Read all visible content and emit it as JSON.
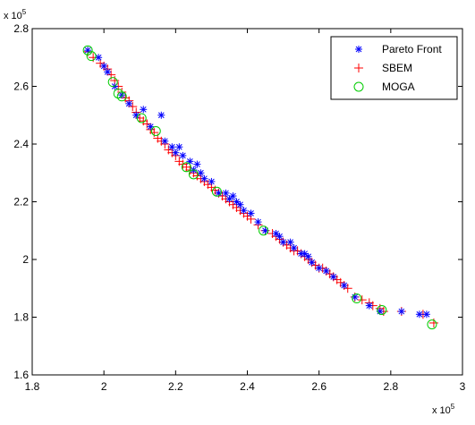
{
  "chart_data": {
    "type": "scatter",
    "title": "",
    "xlabel": "",
    "ylabel": "",
    "x_multiplier_label": "x 10",
    "x_multiplier_exp": "5",
    "y_multiplier_label": "x 10",
    "y_multiplier_exp": "5",
    "xlim": [
      1.8,
      3.0
    ],
    "ylim": [
      1.6,
      2.8
    ],
    "xticks": [
      1.8,
      2.0,
      2.2,
      2.4,
      2.6,
      2.8,
      3.0
    ],
    "yticks": [
      1.6,
      1.8,
      2.0,
      2.2,
      2.4,
      2.6,
      2.8
    ],
    "xtick_labels": [
      "1.8",
      "2",
      "2.2",
      "2.4",
      "2.6",
      "2.8",
      "3"
    ],
    "ytick_labels": [
      "1.6",
      "1.8",
      "2",
      "2.2",
      "2.4",
      "2.6",
      "2.8"
    ],
    "grid": false,
    "legend_position": "top-right",
    "series": [
      {
        "name": "Pareto Front",
        "marker": "star",
        "color": "#0000ff",
        "x": [
          1.955,
          1.985,
          2.0,
          2.01,
          2.03,
          2.05,
          2.07,
          2.09,
          2.11,
          2.13,
          2.16,
          2.17,
          2.19,
          2.2,
          2.21,
          2.22,
          2.24,
          2.25,
          2.26,
          2.27,
          2.28,
          2.3,
          2.32,
          2.34,
          2.35,
          2.36,
          2.37,
          2.38,
          2.39,
          2.41,
          2.43,
          2.45,
          2.48,
          2.49,
          2.5,
          2.52,
          2.53,
          2.55,
          2.56,
          2.57,
          2.58,
          2.6,
          2.62,
          2.64,
          2.67,
          2.7,
          2.74,
          2.77,
          2.83,
          2.88,
          2.9
        ],
        "y": [
          2.725,
          2.7,
          2.67,
          2.65,
          2.6,
          2.57,
          2.54,
          2.5,
          2.52,
          2.46,
          2.5,
          2.41,
          2.39,
          2.37,
          2.39,
          2.36,
          2.34,
          2.31,
          2.33,
          2.3,
          2.28,
          2.27,
          2.23,
          2.23,
          2.21,
          2.22,
          2.2,
          2.19,
          2.17,
          2.16,
          2.13,
          2.1,
          2.09,
          2.08,
          2.06,
          2.06,
          2.04,
          2.02,
          2.02,
          2.01,
          1.99,
          1.97,
          1.96,
          1.94,
          1.91,
          1.87,
          1.84,
          1.82,
          1.82,
          1.81,
          1.81
        ]
      },
      {
        "name": "SBEM",
        "marker": "plus",
        "color": "#ff0000",
        "x": [
          1.955,
          1.97,
          1.99,
          2.0,
          2.01,
          2.02,
          2.03,
          2.04,
          2.05,
          2.06,
          2.07,
          2.08,
          2.09,
          2.1,
          2.11,
          2.12,
          2.13,
          2.14,
          2.15,
          2.16,
          2.17,
          2.18,
          2.19,
          2.2,
          2.21,
          2.22,
          2.23,
          2.24,
          2.25,
          2.26,
          2.27,
          2.28,
          2.29,
          2.3,
          2.31,
          2.32,
          2.33,
          2.34,
          2.35,
          2.36,
          2.37,
          2.38,
          2.39,
          2.4,
          2.41,
          2.43,
          2.45,
          2.47,
          2.48,
          2.49,
          2.5,
          2.51,
          2.52,
          2.53,
          2.54,
          2.55,
          2.56,
          2.57,
          2.58,
          2.59,
          2.6,
          2.61,
          2.62,
          2.63,
          2.64,
          2.65,
          2.66,
          2.67,
          2.68,
          2.7,
          2.72,
          2.74,
          2.75,
          2.77,
          2.78,
          2.83,
          2.89,
          2.92
        ],
        "y": [
          2.72,
          2.7,
          2.68,
          2.67,
          2.66,
          2.64,
          2.62,
          2.6,
          2.58,
          2.56,
          2.55,
          2.53,
          2.51,
          2.49,
          2.48,
          2.47,
          2.45,
          2.44,
          2.42,
          2.41,
          2.4,
          2.38,
          2.37,
          2.36,
          2.34,
          2.33,
          2.32,
          2.31,
          2.3,
          2.29,
          2.28,
          2.27,
          2.26,
          2.25,
          2.24,
          2.23,
          2.22,
          2.21,
          2.2,
          2.19,
          2.18,
          2.17,
          2.16,
          2.15,
          2.14,
          2.12,
          2.1,
          2.09,
          2.08,
          2.07,
          2.06,
          2.05,
          2.04,
          2.03,
          2.03,
          2.02,
          2.01,
          2.0,
          1.99,
          1.98,
          1.97,
          1.97,
          1.96,
          1.95,
          1.94,
          1.93,
          1.92,
          1.91,
          1.9,
          1.87,
          1.86,
          1.85,
          1.84,
          1.83,
          1.82,
          1.82,
          1.81,
          1.78
        ]
      },
      {
        "name": "MOGA",
        "marker": "circle",
        "color": "#00cc00",
        "x": [
          1.955,
          1.965,
          2.025,
          2.04,
          2.05,
          2.105,
          2.145,
          2.23,
          2.25,
          2.315,
          2.445,
          2.705,
          2.775,
          2.915
        ],
        "y": [
          2.725,
          2.705,
          2.615,
          2.575,
          2.565,
          2.49,
          2.445,
          2.32,
          2.295,
          2.235,
          2.1,
          1.865,
          1.825,
          1.775
        ]
      }
    ]
  }
}
